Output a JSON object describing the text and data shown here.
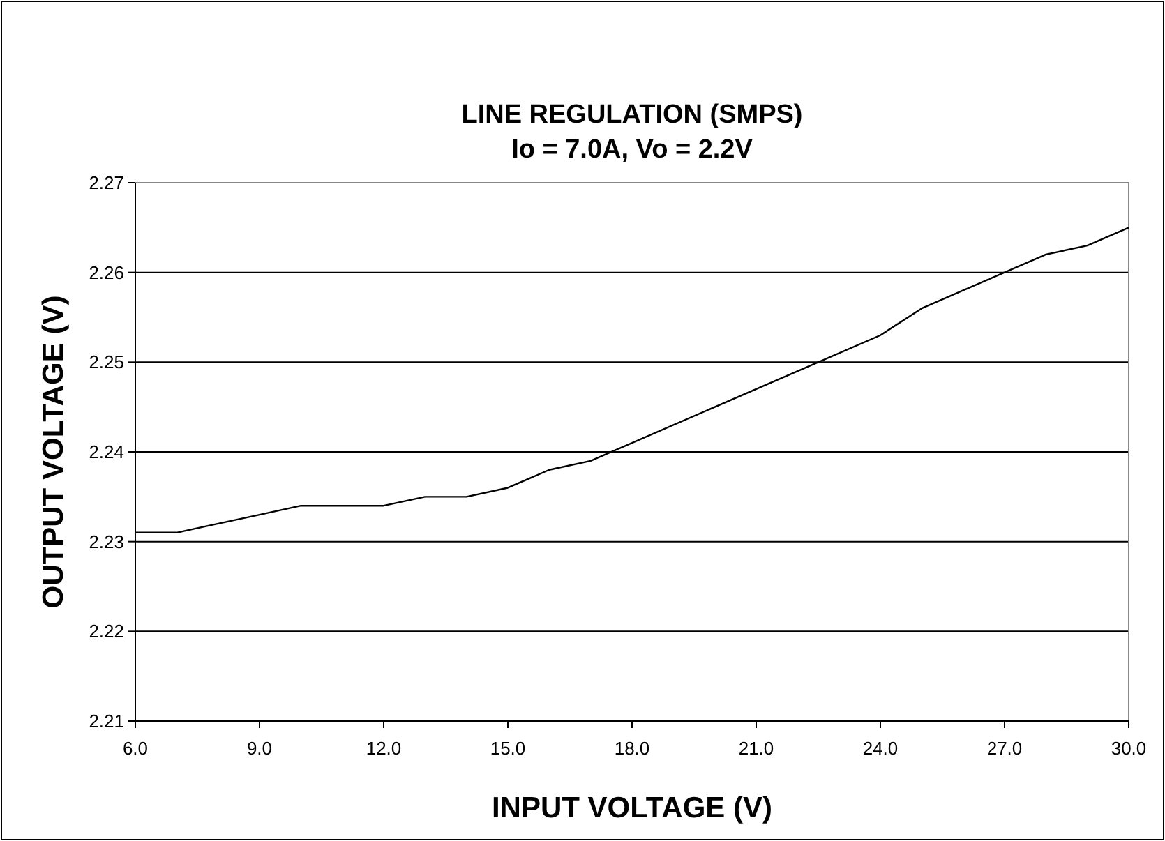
{
  "chart_data": {
    "type": "line",
    "title": "LINE REGULATION (SMPS)",
    "subtitle": "Io = 7.0A, Vo = 2.2V",
    "xlabel": "INPUT VOLTAGE (V)",
    "ylabel": "OUTPUT VOLTAGE (V)",
    "x": [
      6,
      7,
      8,
      9,
      10,
      11,
      12,
      13,
      14,
      15,
      16,
      17,
      24,
      25,
      26,
      27,
      28,
      29,
      30
    ],
    "series": [
      {
        "color": "#000000",
        "values": [
          2.231,
          2.231,
          2.232,
          2.233,
          2.234,
          2.234,
          2.234,
          2.235,
          2.235,
          2.236,
          2.238,
          2.239,
          2.253,
          2.256,
          2.258,
          2.26,
          2.262,
          2.263,
          2.265
        ]
      }
    ],
    "xlim": [
      6,
      30
    ],
    "xticks": [
      {
        "value": 6,
        "label": "6.0"
      },
      {
        "value": 9,
        "label": "9.0"
      },
      {
        "value": 12,
        "label": "12.0"
      },
      {
        "value": 15,
        "label": "15.0"
      },
      {
        "value": 18,
        "label": "18.0"
      },
      {
        "value": 21,
        "label": "21.0"
      },
      {
        "value": 24,
        "label": "24.0"
      },
      {
        "value": 27,
        "label": "27.0"
      },
      {
        "value": 30,
        "label": "30.0"
      }
    ],
    "ylim": [
      2.21,
      2.27
    ],
    "yticks": [
      2.21,
      2.22,
      2.23,
      2.24,
      2.25,
      2.26,
      2.27
    ],
    "grid": "y",
    "marker": "none",
    "line_style": "solid"
  }
}
